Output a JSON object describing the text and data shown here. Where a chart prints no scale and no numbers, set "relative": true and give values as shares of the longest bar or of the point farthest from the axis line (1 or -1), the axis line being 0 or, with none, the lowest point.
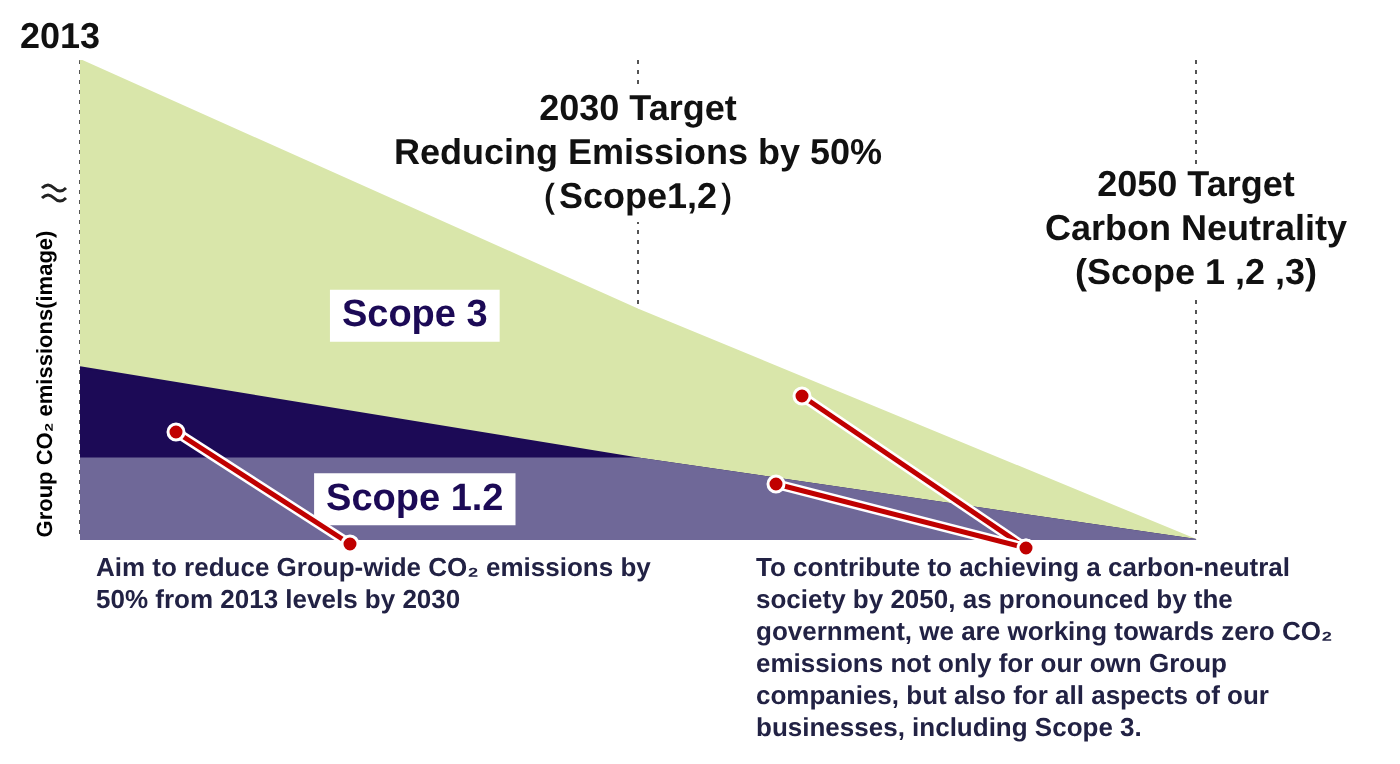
{
  "chart_data": {
    "type": "area",
    "ylabel": "Group CO₂ emissions(image)",
    "categories": [
      null,
      null,
      null
    ],
    "relative": true,
    "stacked": true,
    "tick_labels": false,
    "grid": "x",
    "legend": false,
    "series": [
      {
        "name": "Scope 1.2",
        "color": "#6f6898",
        "values": [
          0.17,
          0.17,
          0
        ]
      },
      {
        "color": "#1c0a56",
        "values": [
          0.19,
          0,
          0
        ]
      },
      {
        "name": "Scope 3",
        "color": "#d9e6aa",
        "values": [
          0.64,
          0.31,
          0
        ]
      }
    ],
    "annotations": [
      "2013",
      "2030 Target\nReducing Emissions by 50%\n（Scope1,2）",
      "2050 Target\nCarbon Neutrality\n(Scope 1 ,2 ,3)",
      "Aim to reduce Group-wide CO₂ emissions by 50% from 2013 levels by 2030",
      "To contribute to achieving a carbon-neutral society by 2050, as pronounced by the government, we are working towards zero CO₂ emissions not only for our own Group companies, but also for all aspects of our businesses, including Scope 3."
    ]
  }
}
